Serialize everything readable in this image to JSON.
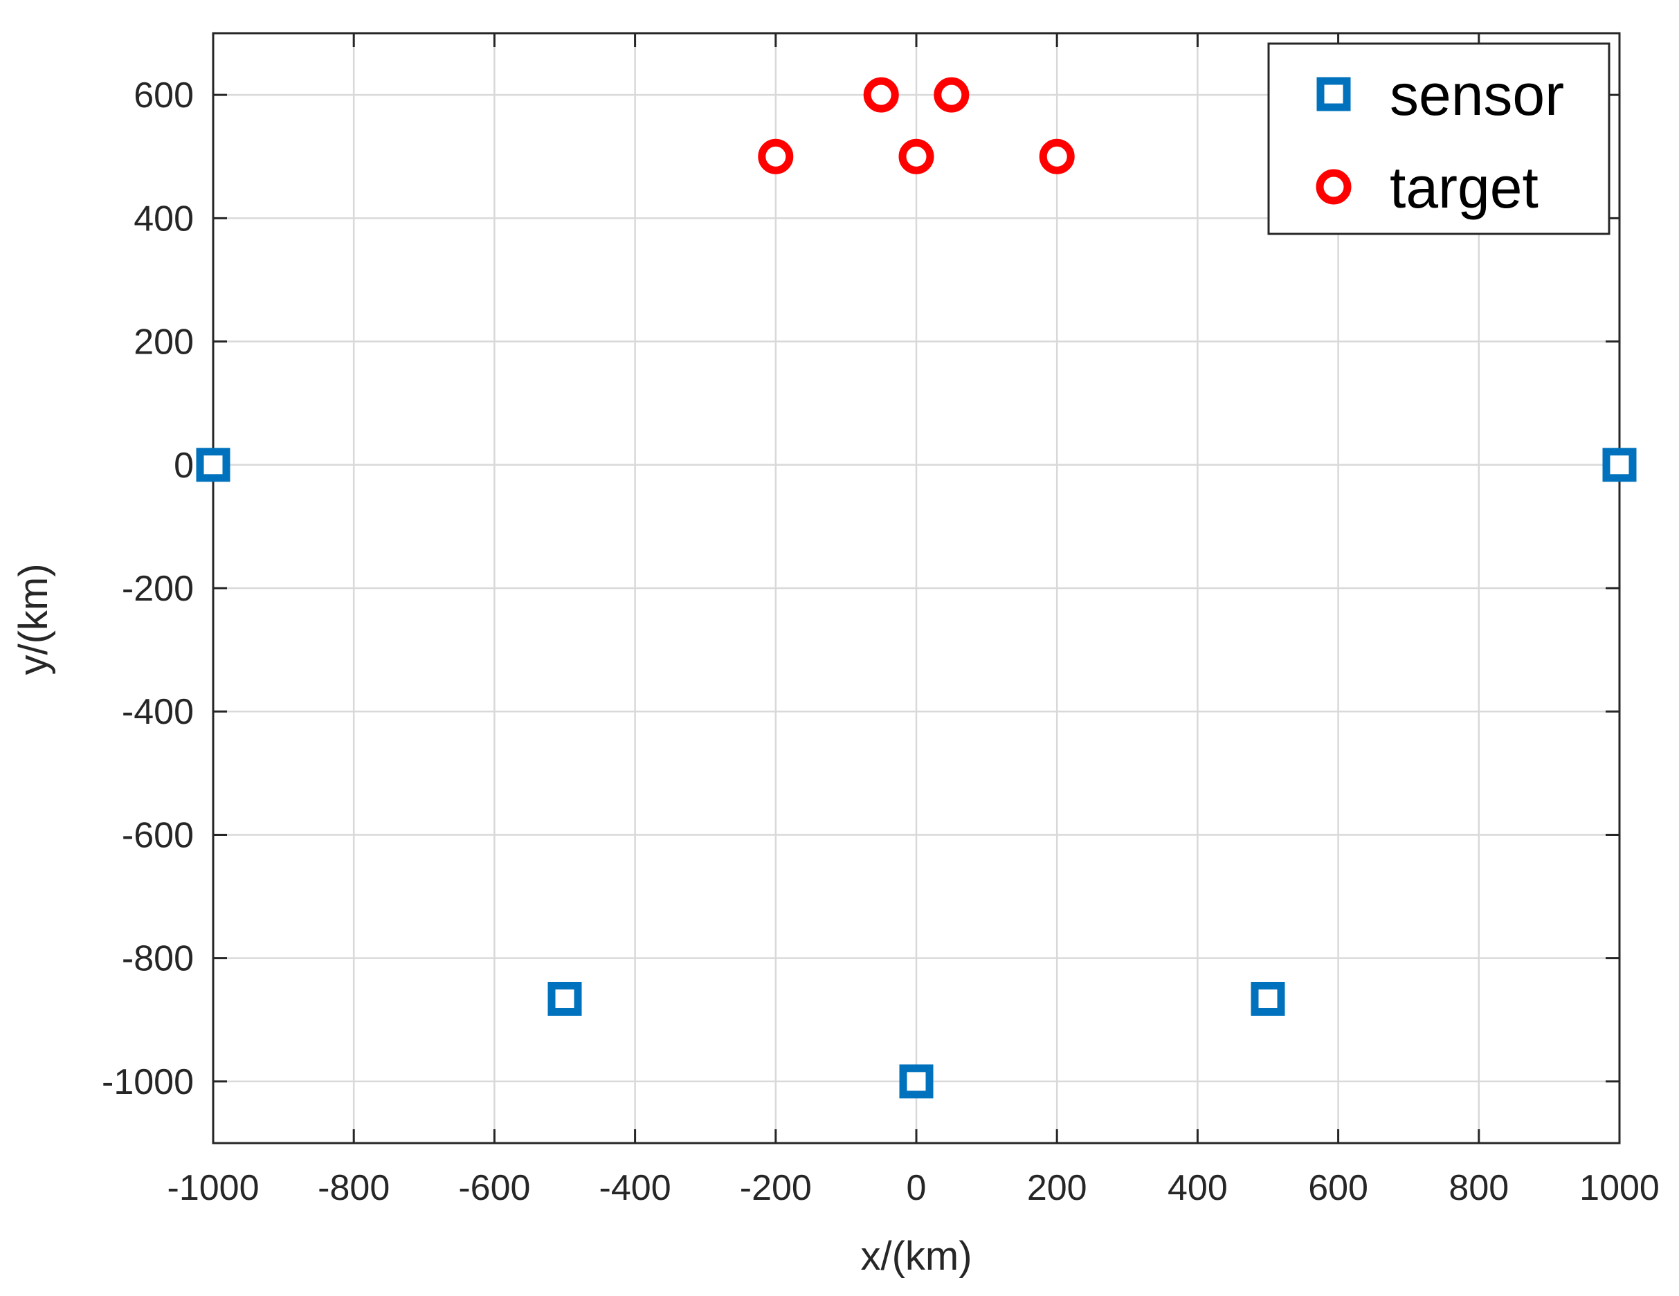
{
  "chart_data": {
    "type": "scatter",
    "xlabel": "x/(km)",
    "ylabel": "y/(km)",
    "xlim": [
      -1000,
      1000
    ],
    "ylim": [
      -1100,
      700
    ],
    "xticks": [
      -1000,
      -800,
      -600,
      -400,
      -200,
      0,
      200,
      400,
      600,
      800,
      1000
    ],
    "yticks": [
      -1000,
      -800,
      -600,
      -400,
      -200,
      0,
      200,
      400,
      600
    ],
    "xtick_labels": [
      "-1000",
      "-800",
      "-600",
      "-400",
      "-200",
      "0",
      "200",
      "400",
      "600",
      "800",
      "1000"
    ],
    "ytick_labels": [
      "-1000",
      "-800",
      "-600",
      "-400",
      "-200",
      "0",
      "200",
      "400",
      "600"
    ],
    "grid": true,
    "legend_position": "top-right",
    "series": [
      {
        "name": "sensor",
        "marker": "square",
        "color": "#0072BD",
        "points": [
          {
            "x": -1000,
            "y": 0
          },
          {
            "x": 1000,
            "y": 0
          },
          {
            "x": -500,
            "y": -866
          },
          {
            "x": 500,
            "y": -866
          },
          {
            "x": 0,
            "y": -1000
          }
        ]
      },
      {
        "name": "target",
        "marker": "circle",
        "color": "#FF0000",
        "points": [
          {
            "x": -200,
            "y": 500
          },
          {
            "x": 0,
            "y": 500
          },
          {
            "x": 200,
            "y": 500
          },
          {
            "x": -50,
            "y": 600
          },
          {
            "x": 50,
            "y": 600
          }
        ]
      }
    ]
  }
}
